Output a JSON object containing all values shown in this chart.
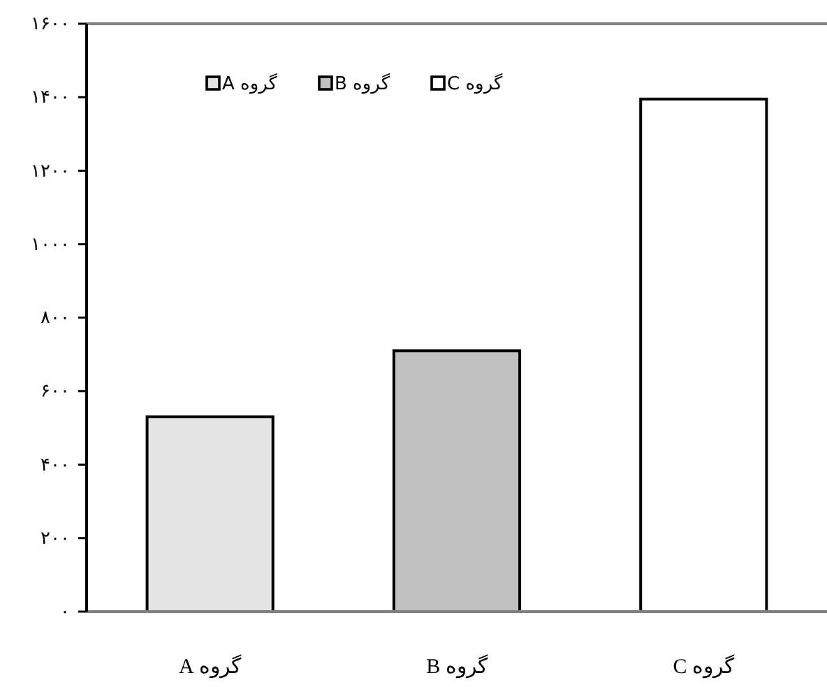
{
  "chart_data": {
    "type": "bar",
    "categories": [
      "گروه A",
      "گروه B",
      "گروه C"
    ],
    "series": [
      {
        "name": "گروه A",
        "color": "#e3e3e3",
        "values": [
          530,
          null,
          null
        ]
      },
      {
        "name": "گروه B",
        "color": "#c0c0c0",
        "values": [
          null,
          710,
          null
        ]
      },
      {
        "name": "گروه C",
        "color": "#ffffff",
        "values": [
          null,
          null,
          1395
        ]
      }
    ],
    "ylim": [
      0,
      1600
    ],
    "yticks": [
      {
        "value": 0,
        "label": "۰"
      },
      {
        "value": 200,
        "label": "۲۰۰"
      },
      {
        "value": 400,
        "label": "۴۰۰"
      },
      {
        "value": 600,
        "label": "۶۰۰"
      },
      {
        "value": 800,
        "label": "۸۰۰"
      },
      {
        "value": 1000,
        "label": "۱۰۰۰"
      },
      {
        "value": 1200,
        "label": "۱۲۰۰"
      },
      {
        "value": 1400,
        "label": "۱۴۰۰"
      },
      {
        "value": 1600,
        "label": "۱۶۰۰"
      }
    ],
    "legend": "top"
  }
}
